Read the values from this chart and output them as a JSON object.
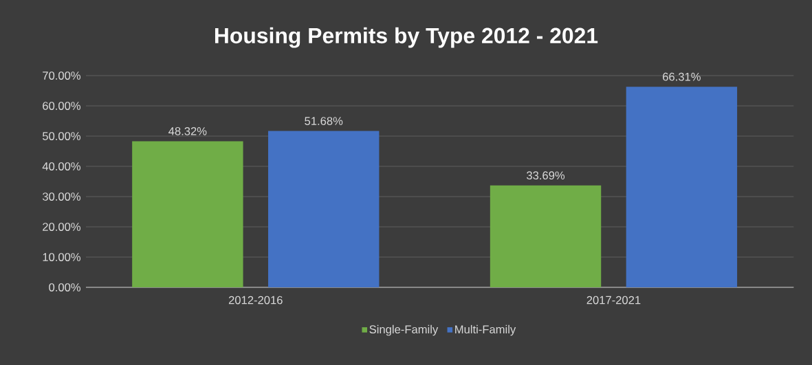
{
  "chart_data": {
    "type": "bar",
    "title": "Housing Permits by Type 2012 - 2021",
    "categories": [
      "2012-2016",
      "2017-2021"
    ],
    "series": [
      {
        "name": "Single-Family",
        "color": "#70ad47",
        "values": [
          48.32,
          33.69
        ],
        "value_labels": [
          "48.32%",
          "33.69%"
        ]
      },
      {
        "name": "Multi-Family",
        "color": "#4472c4",
        "values": [
          51.68,
          66.31
        ],
        "value_labels": [
          "51.68%",
          "66.31%"
        ]
      }
    ],
    "ylim": [
      0,
      70
    ],
    "yticks": [
      {
        "value": 0,
        "label": "0.00%"
      },
      {
        "value": 10,
        "label": "10.00%"
      },
      {
        "value": 20,
        "label": "20.00%"
      },
      {
        "value": 30,
        "label": "30.00%"
      },
      {
        "value": 40,
        "label": "40.00%"
      },
      {
        "value": 50,
        "label": "50.00%"
      },
      {
        "value": 60,
        "label": "60.00%"
      },
      {
        "value": 70,
        "label": "70.00%"
      }
    ],
    "grid": "y",
    "legend": "bottom"
  }
}
